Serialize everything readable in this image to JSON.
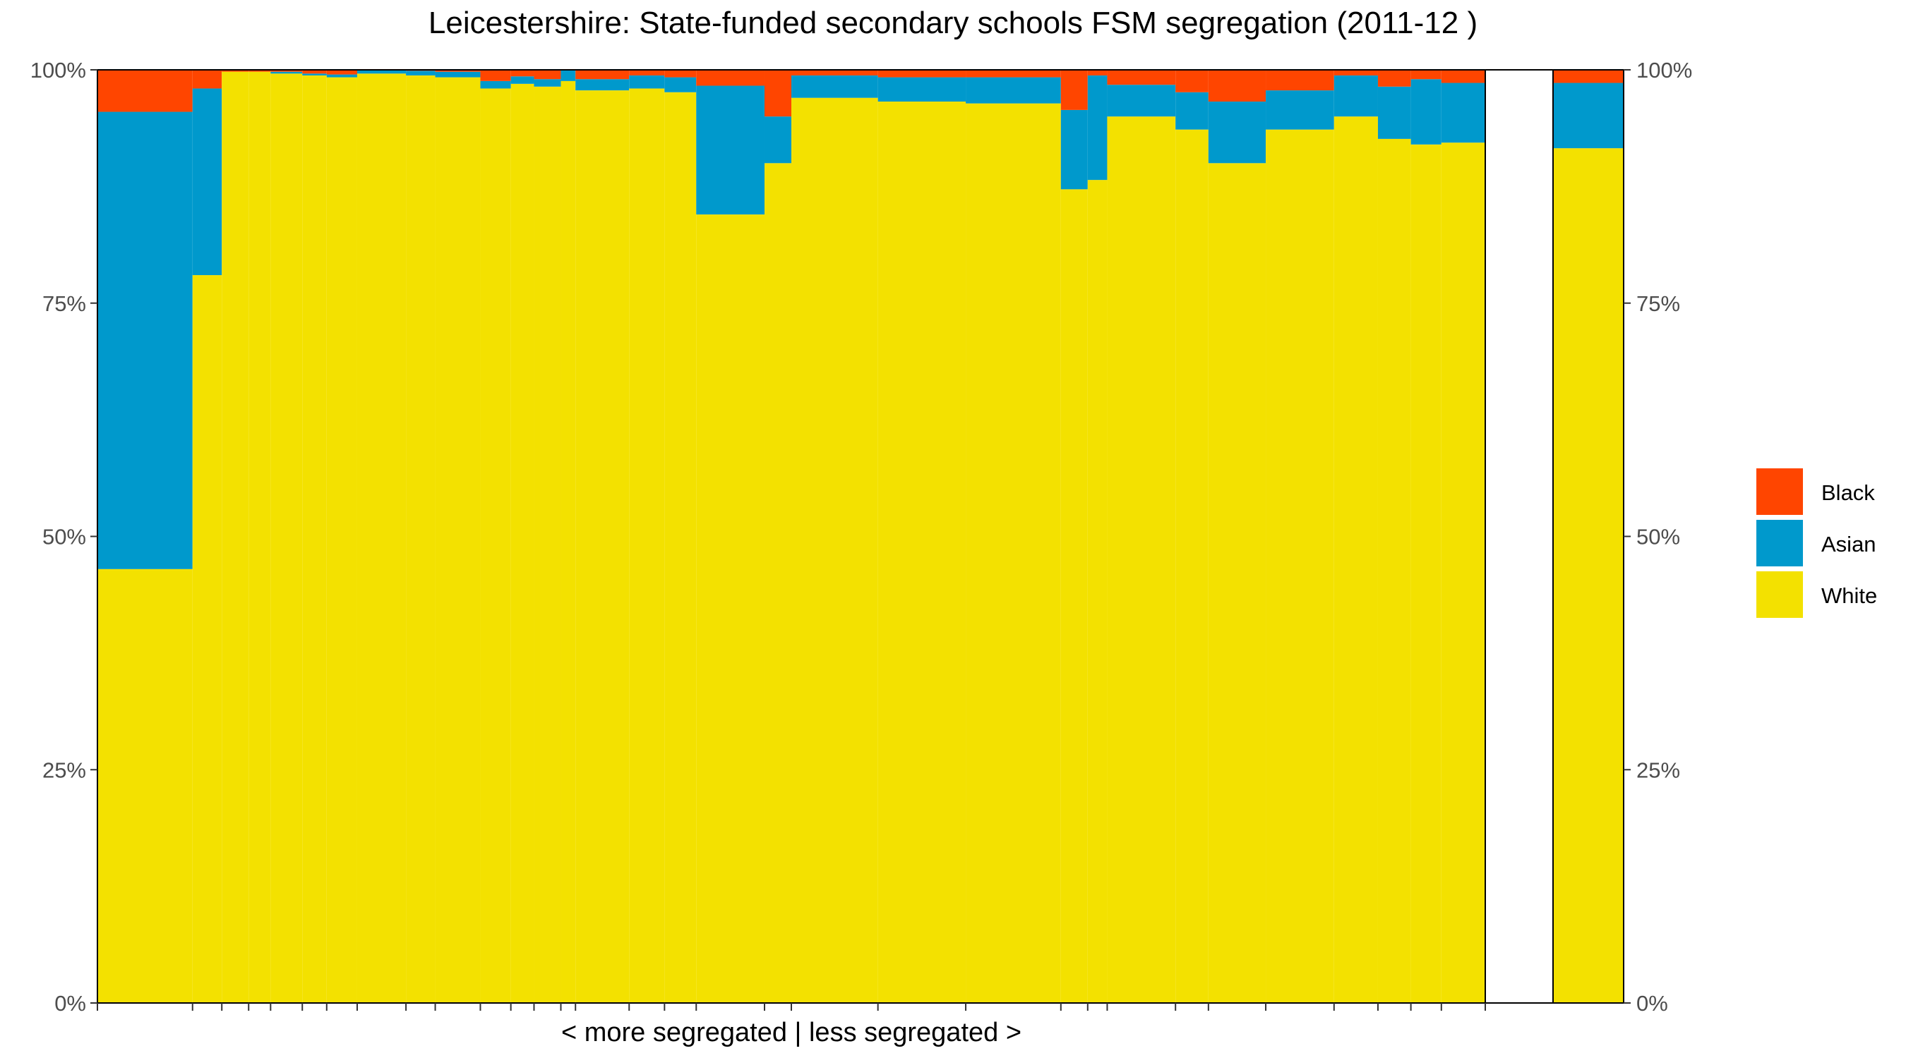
{
  "chart_data": {
    "type": "bar",
    "title": "Leicestershire: State-funded secondary schools FSM segregation (2011-12 )",
    "xlabel": "< more segregated | less segregated >",
    "ylabel": "",
    "ylim": [
      0,
      100
    ],
    "y_tick_labels": [
      "0%",
      "25%",
      "50%",
      "75%",
      "100%"
    ],
    "y_tick_values": [
      0,
      25,
      50,
      75,
      100
    ],
    "legend": {
      "position": "right",
      "entries": [
        {
          "name": "Black",
          "color": "#FF4500"
        },
        {
          "name": "Asian",
          "color": "#0099CC"
        },
        {
          "name": "White",
          "color": "#F3E100"
        }
      ]
    },
    "series": [
      {
        "name": "White",
        "color": "#F3E100"
      },
      {
        "name": "Asian",
        "color": "#0099CC"
      },
      {
        "name": "Black",
        "color": "#FF4500"
      }
    ],
    "x_unit": "relative school width (marimekko)",
    "schools": [
      {
        "w": 78,
        "white": 46.5,
        "asian": 49.0,
        "black": 4.5
      },
      {
        "w": 24,
        "white": 78.0,
        "asian": 20.0,
        "black": 2.0
      },
      {
        "w": 22,
        "white": 99.8,
        "asian": 0.0,
        "black": 0.2
      },
      {
        "w": 18,
        "white": 99.8,
        "asian": 0.0,
        "black": 0.2
      },
      {
        "w": 26,
        "white": 99.6,
        "asian": 0.2,
        "black": 0.2
      },
      {
        "w": 20,
        "white": 99.4,
        "asian": 0.2,
        "black": 0.4
      },
      {
        "w": 25,
        "white": 99.2,
        "asian": 0.3,
        "black": 0.5
      },
      {
        "w": 40,
        "white": 99.6,
        "asian": 0.4,
        "black": 0.0
      },
      {
        "w": 24,
        "white": 99.4,
        "asian": 0.5,
        "black": 0.1
      },
      {
        "w": 37,
        "white": 99.2,
        "asian": 0.6,
        "black": 0.2
      },
      {
        "w": 25,
        "white": 98.0,
        "asian": 0.8,
        "black": 1.2
      },
      {
        "w": 19,
        "white": 98.5,
        "asian": 0.8,
        "black": 0.7
      },
      {
        "w": 22,
        "white": 98.2,
        "asian": 0.8,
        "black": 1.0
      },
      {
        "w": 12,
        "white": 98.8,
        "asian": 1.2,
        "black": 0.0
      },
      {
        "w": 44,
        "white": 97.8,
        "asian": 1.2,
        "black": 1.0
      },
      {
        "w": 29,
        "white": 98.0,
        "asian": 1.4,
        "black": 0.6
      },
      {
        "w": 26,
        "white": 97.6,
        "asian": 1.6,
        "black": 0.8
      },
      {
        "w": 56,
        "white": 84.5,
        "asian": 13.8,
        "black": 1.7
      },
      {
        "w": 22,
        "white": 90.0,
        "asian": 5.0,
        "black": 5.0
      },
      {
        "w": 71,
        "white": 97.0,
        "asian": 2.4,
        "black": 0.6
      },
      {
        "w": 72,
        "white": 96.6,
        "asian": 2.6,
        "black": 0.8
      },
      {
        "w": 78,
        "white": 96.4,
        "asian": 2.8,
        "black": 0.8
      },
      {
        "w": 22,
        "white": 87.2,
        "asian": 8.5,
        "black": 4.3
      },
      {
        "w": 16,
        "white": 88.2,
        "asian": 11.2,
        "black": 0.6
      },
      {
        "w": 56,
        "white": 95.0,
        "asian": 3.4,
        "black": 1.6
      },
      {
        "w": 27,
        "white": 93.6,
        "asian": 4.0,
        "black": 2.4
      },
      {
        "w": 47,
        "white": 90.0,
        "asian": 6.6,
        "black": 3.4
      },
      {
        "w": 56,
        "white": 93.6,
        "asian": 4.2,
        "black": 2.2
      },
      {
        "w": 36,
        "white": 95.0,
        "asian": 4.4,
        "black": 0.6
      },
      {
        "w": 27,
        "white": 92.6,
        "asian": 5.6,
        "black": 1.8
      },
      {
        "w": 25,
        "white": 92.0,
        "asian": 7.0,
        "black": 1.0
      },
      {
        "w": 36,
        "white": 92.2,
        "asian": 6.4,
        "black": 1.4
      }
    ],
    "overall": {
      "white": 91.6,
      "asian": 7.0,
      "black": 1.4
    }
  }
}
